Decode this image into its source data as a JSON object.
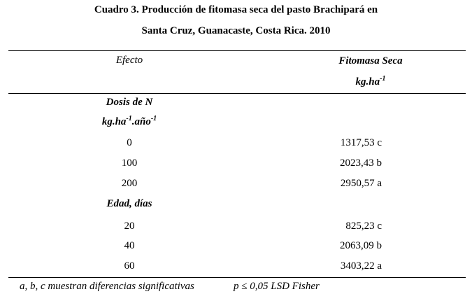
{
  "title": {
    "line1": "Cuadro 3. Producción  de  fitomasa  seca del pasto  Brachipará  en",
    "line2": "Santa Cruz, Guanacaste, Costa Rica. 2010"
  },
  "header": {
    "col1": "Efecto",
    "col2_line1": "Fitomasa Seca",
    "col2_unit_base": "kg.ha",
    "col2_unit_exp": "-1"
  },
  "groups": [
    {
      "label": "Dosis de N",
      "unit_base": "kg.ha",
      "unit_exp1": "-1",
      "unit_mid": ".año",
      "unit_exp2": "-1",
      "rows": [
        {
          "effect": "0",
          "value": "1317,53 c"
        },
        {
          "effect": "100",
          "value": "2023,43 b"
        },
        {
          "effect": "200",
          "value": "2950,57 a"
        }
      ]
    },
    {
      "label": "Edad, días",
      "rows": [
        {
          "effect": "20",
          "value": "825,23 c"
        },
        {
          "effect": "40",
          "value": "2063,09 b"
        },
        {
          "effect": "60",
          "value": "3403,22 a"
        }
      ]
    }
  ],
  "footnote": {
    "left": "a, b, c muestran diferencias significativas",
    "right": "p ≤ 0,05 LSD Fisher"
  }
}
